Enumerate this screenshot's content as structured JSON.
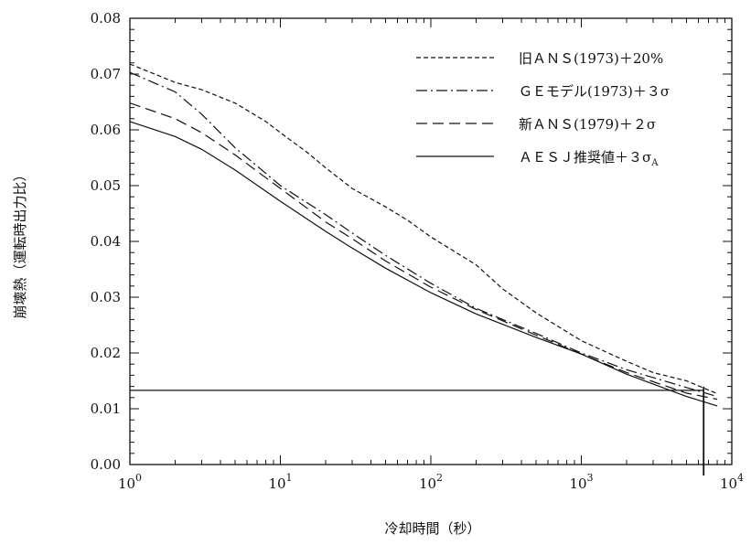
{
  "chart_data": {
    "type": "line",
    "xlabel": "冷却時間（秒）",
    "ylabel": "崩壊熱（運転時出力比）",
    "xscale": "log",
    "xlim": [
      1,
      10000
    ],
    "ylim": [
      0,
      0.08
    ],
    "grid": false,
    "legend_position": "top-right",
    "y_ticks": [
      "0.00",
      "0.01",
      "0.02",
      "0.03",
      "0.04",
      "0.05",
      "0.06",
      "0.07",
      "0.08"
    ],
    "x_ticks": [
      {
        "value": 1,
        "base": "10",
        "exp": "0"
      },
      {
        "value": 10,
        "base": "10",
        "exp": "1"
      },
      {
        "value": 100,
        "base": "10",
        "exp": "2"
      },
      {
        "value": 1000,
        "base": "10",
        "exp": "3"
      },
      {
        "value": 10000,
        "base": "10",
        "exp": "4"
      }
    ],
    "series": [
      {
        "name": "旧ＡＮＳ(1973)＋20%",
        "dash": "short",
        "x": [
          1,
          2,
          3,
          5,
          8,
          10,
          15,
          20,
          30,
          50,
          70,
          100,
          200,
          300,
          500,
          1000,
          2000,
          3000,
          5000,
          8000
        ],
        "y": [
          0.0718,
          0.0685,
          0.0672,
          0.0648,
          0.0615,
          0.0595,
          0.056,
          0.0532,
          0.0495,
          0.0462,
          0.0438,
          0.0408,
          0.0358,
          0.0315,
          0.0272,
          0.0222,
          0.0185,
          0.0165,
          0.015,
          0.0127
        ]
      },
      {
        "name": "ＧＥモデル(1973)＋３σ",
        "dash": "dashdot",
        "x": [
          1,
          2,
          3,
          5,
          8,
          10,
          20,
          30,
          50,
          100,
          200,
          500,
          1000,
          2000,
          5000,
          8000
        ],
        "y": [
          0.0703,
          0.0668,
          0.0628,
          0.0568,
          0.0522,
          0.05,
          0.0448,
          0.0415,
          0.0375,
          0.0325,
          0.028,
          0.0235,
          0.02,
          0.017,
          0.0138,
          0.0122
        ]
      },
      {
        "name": "新ＡＮＳ(1979)＋２σ",
        "dash": "long",
        "x": [
          1,
          2,
          3,
          5,
          10,
          20,
          30,
          50,
          100,
          200,
          500,
          1000,
          2000,
          5000,
          8000
        ],
        "y": [
          0.0648,
          0.062,
          0.0595,
          0.0555,
          0.0495,
          0.0435,
          0.0405,
          0.0365,
          0.0318,
          0.0278,
          0.0232,
          0.0198,
          0.0165,
          0.0128,
          0.0117
        ]
      },
      {
        "name": "ＡＥＳＪ推奨値＋３σ",
        "name_subscript": "A",
        "dash": "solid",
        "x": [
          1,
          2,
          3,
          5,
          10,
          20,
          30,
          50,
          100,
          200,
          500,
          1000,
          2000,
          5000,
          8000
        ],
        "y": [
          0.0615,
          0.0588,
          0.0565,
          0.0528,
          0.0472,
          0.0418,
          0.0388,
          0.0352,
          0.0308,
          0.027,
          0.0228,
          0.0198,
          0.0162,
          0.0122,
          0.0105
        ]
      }
    ],
    "reference_line": {
      "y": 0.0133,
      "x_from": 1,
      "x_to": 6500,
      "drop_x": 6500
    }
  }
}
